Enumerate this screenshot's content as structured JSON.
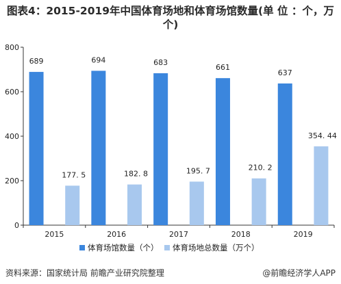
{
  "title": "图表4：2015-2019年中国体育场地和体育场馆数量(单 位 ：个，万个)",
  "source": "资料来源：国家统计局 前瞻产业研究院整理",
  "brand": "@前瞻经济学人APP",
  "chart_data": {
    "type": "bar",
    "categories": [
      "2015",
      "2016",
      "2017",
      "2018",
      "2019"
    ],
    "series": [
      {
        "name": "体育场馆数量（个）",
        "values": [
          689,
          694,
          683,
          661,
          637
        ],
        "labels": [
          "689",
          "694",
          "683",
          "661",
          "637"
        ],
        "color": "#3b86dd"
      },
      {
        "name": "体育场地总数量（万个）",
        "values": [
          177.5,
          182.8,
          195.7,
          210.2,
          354.44
        ],
        "labels": [
          "177. 5",
          "182. 8",
          "195. 7",
          "210. 2",
          "354. 44"
        ],
        "color": "#a8c8ee"
      }
    ],
    "yticks": [
      "0",
      "200",
      "400",
      "600",
      "800"
    ],
    "ylim": [
      0,
      800
    ],
    "legend_position": "bottom",
    "grid": false
  }
}
